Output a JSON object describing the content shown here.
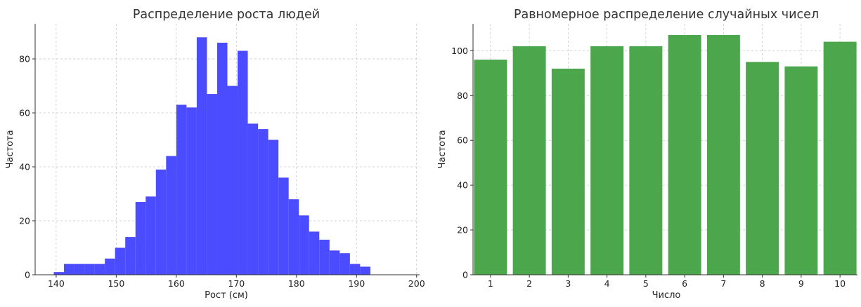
{
  "chart_data": [
    {
      "type": "bar",
      "histogram": true,
      "title": "Распределение роста людей",
      "xlabel": "Рост (см)",
      "ylabel": "Частота",
      "color": "#4b4bff",
      "bin_edges": [
        139.6,
        141.3,
        143.0,
        144.7,
        146.4,
        148.1,
        149.8,
        151.5,
        153.2,
        154.9,
        156.6,
        158.3,
        160.0,
        161.7,
        163.4,
        165.1,
        166.8,
        168.5,
        170.2,
        171.9,
        173.6,
        175.3,
        177.0,
        178.7,
        180.4,
        182.1,
        183.8,
        185.5,
        187.2,
        188.9,
        190.6,
        192.3,
        194.0,
        195.7,
        197.4
      ],
      "values": [
        1,
        4,
        4,
        4,
        4,
        6,
        10,
        14,
        27,
        29,
        39,
        44,
        63,
        62,
        88,
        67,
        86,
        70,
        83,
        56,
        54,
        50,
        36,
        28,
        22,
        16,
        13,
        9,
        8,
        4,
        3,
        0,
        0,
        0
      ],
      "xlim": [
        136.5,
        200.5
      ],
      "ylim": [
        0,
        93
      ],
      "xticks": [
        140,
        150,
        160,
        170,
        180,
        190,
        200
      ],
      "yticks": [
        0,
        20,
        40,
        60,
        80
      ],
      "grid": true
    },
    {
      "type": "bar",
      "title": "Равномерное распределение случайных чисел",
      "xlabel": "Число",
      "ylabel": "Частота",
      "color": "#4ca64c",
      "categories": [
        1,
        2,
        3,
        4,
        5,
        6,
        7,
        8,
        9,
        10
      ],
      "values": [
        96,
        102,
        92,
        102,
        102,
        107,
        107,
        95,
        93,
        104
      ],
      "xlim": [
        0.55,
        10.45
      ],
      "ylim": [
        0,
        112
      ],
      "xticks": [
        1,
        2,
        3,
        4,
        5,
        6,
        7,
        8,
        9,
        10
      ],
      "yticks": [
        0,
        20,
        40,
        60,
        80,
        100
      ],
      "grid": true
    }
  ]
}
